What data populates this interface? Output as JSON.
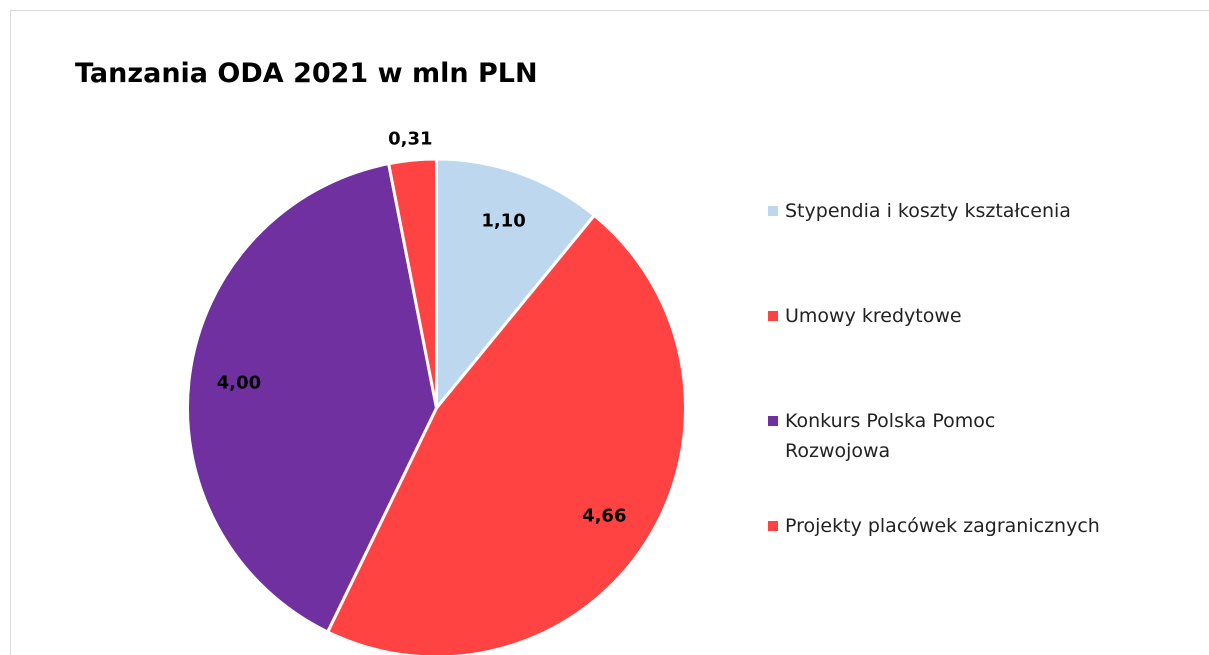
{
  "chart_data": {
    "type": "pie",
    "title": "Tanzania ODA 2021 w mln PLN",
    "categories": [
      "Stypendia i koszty kształcenia",
      "Umowy kredytowe",
      "Konkurs Polska Pomoc Rozwojowa",
      "Projekty placówek zagranicznych"
    ],
    "values": [
      1.1,
      4.66,
      4.0,
      0.31
    ],
    "value_labels": [
      "1,10",
      "4,66",
      "4,00",
      "0,31"
    ],
    "colors": [
      "#bdd7ee",
      "#ff4343",
      "#7030a0",
      "#ff4343"
    ],
    "legend": "right"
  }
}
